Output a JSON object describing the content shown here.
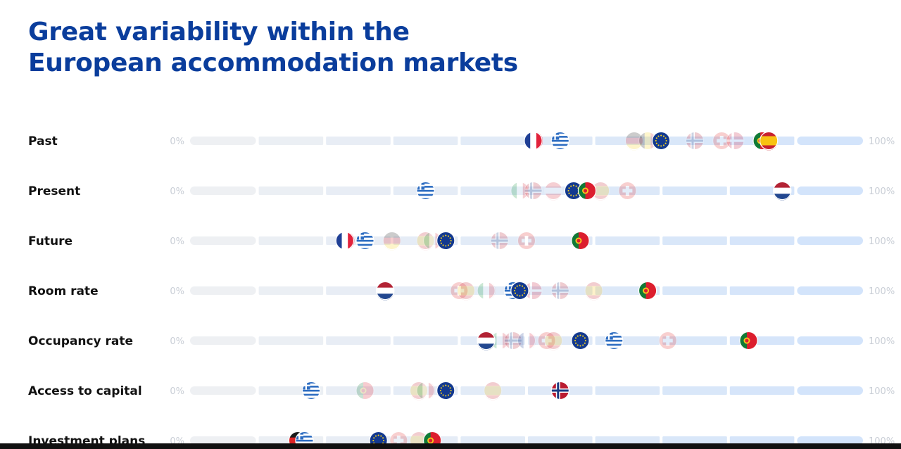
{
  "title": {
    "line1": "Great variability within the",
    "line2": "European accommodation markets"
  },
  "colors": {
    "title": "#0a3d9c",
    "track_light": "#eef0f3",
    "track_blue": "#d3e4fb"
  },
  "chart_data": {
    "type": "scatter",
    "axis_min_label": "0%",
    "axis_max_label": "100%",
    "xlim": [
      0,
      100
    ],
    "rows": [
      {
        "label": "Past",
        "markers": [
          {
            "flag": "fr",
            "value": 51,
            "faded": false
          },
          {
            "flag": "gr",
            "value": 55,
            "faded": false
          },
          {
            "flag": "de",
            "value": 66,
            "faded": true
          },
          {
            "flag": "be",
            "value": 68,
            "faded": true
          },
          {
            "flag": "eu",
            "value": 70,
            "faded": false
          },
          {
            "flag": "no",
            "value": 75,
            "faded": true
          },
          {
            "flag": "ch",
            "value": 79,
            "faded": true
          },
          {
            "flag": "dk",
            "value": 81,
            "faded": true
          },
          {
            "flag": "pt",
            "value": 85,
            "faded": false
          },
          {
            "flag": "es",
            "value": 86,
            "faded": false
          }
        ]
      },
      {
        "label": "Present",
        "markers": [
          {
            "flag": "gr",
            "value": 35,
            "faded": false
          },
          {
            "flag": "it",
            "value": 49,
            "faded": true
          },
          {
            "flag": "no",
            "value": 51,
            "faded": true
          },
          {
            "flag": "at",
            "value": 54,
            "faded": true
          },
          {
            "flag": "eu",
            "value": 57,
            "faded": false
          },
          {
            "flag": "pt",
            "value": 59,
            "faded": false
          },
          {
            "flag": "es",
            "value": 61,
            "faded": true
          },
          {
            "flag": "ch",
            "value": 65,
            "faded": true
          },
          {
            "flag": "nl",
            "value": 88,
            "faded": false
          }
        ]
      },
      {
        "label": "Future",
        "markers": [
          {
            "flag": "fr",
            "value": 23,
            "faded": false
          },
          {
            "flag": "gr",
            "value": 26,
            "faded": false
          },
          {
            "flag": "de",
            "value": 30,
            "faded": true
          },
          {
            "flag": "es",
            "value": 35,
            "faded": true
          },
          {
            "flag": "it",
            "value": 36,
            "faded": true
          },
          {
            "flag": "eu",
            "value": 38,
            "faded": false
          },
          {
            "flag": "no",
            "value": 46,
            "faded": true
          },
          {
            "flag": "ch",
            "value": 50,
            "faded": true
          },
          {
            "flag": "pt",
            "value": 58,
            "faded": false
          }
        ]
      },
      {
        "label": "Room rate",
        "markers": [
          {
            "flag": "nl",
            "value": 29,
            "faded": false
          },
          {
            "flag": "ch",
            "value": 40,
            "faded": true
          },
          {
            "flag": "es",
            "value": 41,
            "faded": true
          },
          {
            "flag": "it",
            "value": 44,
            "faded": true
          },
          {
            "flag": "gr",
            "value": 48,
            "faded": false
          },
          {
            "flag": "eu",
            "value": 49,
            "faded": false
          },
          {
            "flag": "dk",
            "value": 51,
            "faded": true
          },
          {
            "flag": "no",
            "value": 55,
            "faded": true
          },
          {
            "flag": "es",
            "value": 60,
            "faded": true
          },
          {
            "flag": "pt",
            "value": 68,
            "faded": false
          }
        ]
      },
      {
        "label": "Occupancy rate",
        "markers": [
          {
            "flag": "nl",
            "value": 44,
            "faded": false
          },
          {
            "flag": "it",
            "value": 46,
            "faded": true
          },
          {
            "flag": "no",
            "value": 48,
            "faded": true
          },
          {
            "flag": "fr",
            "value": 50,
            "faded": true
          },
          {
            "flag": "ch",
            "value": 53,
            "faded": true
          },
          {
            "flag": "es",
            "value": 54,
            "faded": true
          },
          {
            "flag": "eu",
            "value": 58,
            "faded": false
          },
          {
            "flag": "gr",
            "value": 63,
            "faded": false
          },
          {
            "flag": "ch",
            "value": 71,
            "faded": true
          },
          {
            "flag": "pt",
            "value": 83,
            "faded": false
          }
        ]
      },
      {
        "label": "Access to capital",
        "markers": [
          {
            "flag": "gr",
            "value": 18,
            "faded": false
          },
          {
            "flag": "pt",
            "value": 26,
            "faded": true
          },
          {
            "flag": "es",
            "value": 34,
            "faded": true
          },
          {
            "flag": "it",
            "value": 35,
            "faded": true
          },
          {
            "flag": "eu",
            "value": 38,
            "faded": false
          },
          {
            "flag": "es",
            "value": 45,
            "faded": true
          },
          {
            "flag": "no",
            "value": 55,
            "faded": false
          }
        ]
      },
      {
        "label": "Investment plans",
        "markers": [
          {
            "flag": "de",
            "value": 16,
            "faded": false
          },
          {
            "flag": "gr",
            "value": 17,
            "faded": false
          },
          {
            "flag": "eu",
            "value": 28,
            "faded": false
          },
          {
            "flag": "ch",
            "value": 31,
            "faded": true
          },
          {
            "flag": "es",
            "value": 34,
            "faded": true
          },
          {
            "flag": "pt",
            "value": 36,
            "faded": false
          }
        ]
      }
    ]
  }
}
